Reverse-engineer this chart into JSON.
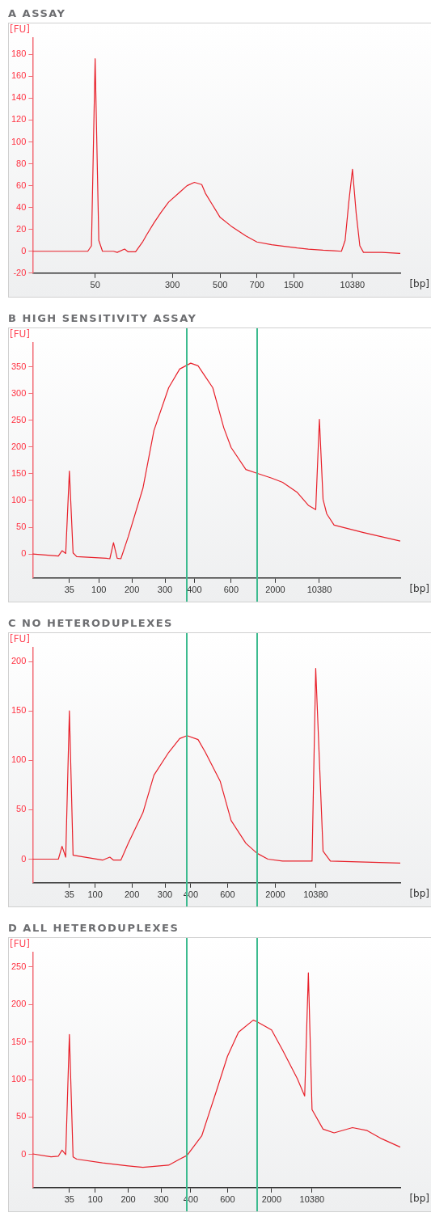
{
  "chart_data": [
    {
      "type": "line",
      "title": "A ASSAY",
      "xlabel": "[bp]",
      "ylabel": "[FU]",
      "ylim": [
        -20,
        195
      ],
      "grid": false,
      "yticks": [
        -20,
        0,
        20,
        40,
        60,
        80,
        100,
        120,
        140,
        160,
        180
      ],
      "categories": [
        null,
        null,
        null,
        null,
        null,
        null,
        null,
        null,
        null,
        null,
        null,
        null,
        null,
        null,
        null,
        null,
        null,
        "50",
        null,
        null,
        null,
        null,
        null,
        null,
        null,
        null,
        null,
        null,
        null,
        null,
        null,
        null,
        null,
        null,
        null,
        null,
        null,
        null,
        "300",
        null,
        null,
        null,
        null,
        null,
        null,
        null,
        null,
        null,
        null,
        null,
        null,
        "500",
        null,
        null,
        null,
        null,
        null,
        null,
        null,
        null,
        null,
        "700",
        null,
        null,
        null,
        null,
        null,
        null,
        null,
        null,
        null,
        "1500",
        null,
        null,
        null,
        null,
        null,
        null,
        null,
        null,
        null,
        null,
        null,
        null,
        null,
        null,
        null,
        "10380",
        null,
        null,
        null,
        null,
        null,
        null,
        null,
        null,
        null,
        null,
        null,
        null,
        null
      ],
      "series": [
        {
          "color": "#e8202a",
          "values": [
            0,
            null,
            null,
            null,
            null,
            null,
            null,
            null,
            null,
            null,
            null,
            null,
            null,
            null,
            null,
            0,
            5,
            176,
            10,
            0,
            null,
            null,
            0,
            -1,
            null,
            2,
            -0.5,
            null,
            -0.5,
            null,
            9,
            15,
            null,
            26,
            null,
            36,
            null,
            45,
            null,
            null,
            54,
            null,
            60,
            null,
            63,
            null,
            61,
            53,
            null,
            42,
            null,
            31,
            null,
            null,
            23,
            null,
            null,
            null,
            14,
            null,
            null,
            8.5,
            null,
            null,
            null,
            6,
            null,
            null,
            4.7,
            null,
            null,
            null,
            3,
            null,
            null,
            2,
            null,
            null,
            null,
            1,
            null,
            null,
            0.5,
            null,
            0,
            10,
            45,
            75,
            35,
            5,
            -1,
            null,
            null,
            null,
            null,
            -1,
            null,
            null,
            null,
            null,
            -2
          ]
        }
      ]
    },
    {
      "type": "line",
      "title": "B HIGH SENSITIVITY ASSAY",
      "xlabel": "[bp]",
      "ylabel": "[FU]",
      "ylim": [
        -45,
        395
      ],
      "grid": false,
      "yticks": [
        0,
        50,
        100,
        150,
        200,
        250,
        300,
        350
      ],
      "categories": [
        null,
        null,
        null,
        null,
        null,
        null,
        null,
        null,
        null,
        null,
        "35",
        null,
        null,
        null,
        null,
        null,
        null,
        null,
        "100",
        null,
        null,
        null,
        null,
        null,
        null,
        null,
        null,
        "200",
        null,
        null,
        null,
        null,
        null,
        null,
        null,
        null,
        "300",
        null,
        null,
        null,
        null,
        null,
        null,
        null,
        "400",
        null,
        null,
        null,
        null,
        null,
        null,
        null,
        null,
        null,
        "600",
        null,
        null,
        null,
        null,
        null,
        null,
        null,
        null,
        null,
        null,
        null,
        "2000",
        null,
        null,
        null,
        null,
        null,
        null,
        null,
        null,
        null,
        null,
        null,
        "10380",
        null,
        null,
        null,
        null,
        null,
        null,
        null,
        null,
        null,
        null,
        null,
        null,
        null,
        null,
        null,
        null,
        null,
        null,
        null,
        null,
        null,
        null
      ],
      "series": [
        {
          "color": "#e8202a",
          "values": [
            0,
            null,
            null,
            null,
            null,
            null,
            null,
            -4,
            6,
            1,
            155,
            2,
            -5,
            null,
            null,
            null,
            null,
            null,
            null,
            null,
            -8,
            -9,
            21,
            -8,
            -9,
            null,
            32,
            null,
            null,
            null,
            123,
            null,
            null,
            231,
            null,
            null,
            null,
            311,
            null,
            null,
            346,
            null,
            null,
            357,
            null,
            352,
            null,
            null,
            null,
            311,
            null,
            null,
            236,
            null,
            199,
            null,
            null,
            null,
            158,
            null,
            null,
            151,
            null,
            null,
            null,
            142,
            null,
            null,
            134,
            null,
            null,
            null,
            115,
            null,
            null,
            91,
            null,
            83,
            252,
            102,
            75,
            null,
            54,
            null,
            null,
            null,
            null,
            null,
            null,
            null,
            40,
            null,
            null,
            null,
            null,
            null,
            null,
            null,
            null,
            null,
            24
          ]
        }
      ]
    },
    {
      "type": "line",
      "title": "C NO HETERODUPLEXES",
      "xlabel": "[bp]",
      "ylabel": "[FU]",
      "ylim": [
        -24,
        214
      ],
      "grid": false,
      "yticks": [
        0,
        50,
        100,
        150,
        200
      ],
      "categories": [
        null,
        null,
        null,
        null,
        null,
        null,
        null,
        null,
        null,
        null,
        "35",
        null,
        null,
        null,
        null,
        null,
        null,
        "100",
        null,
        null,
        null,
        null,
        null,
        null,
        null,
        null,
        null,
        "200",
        null,
        null,
        null,
        null,
        null,
        null,
        null,
        null,
        "300",
        null,
        null,
        null,
        null,
        null,
        null,
        "400",
        null,
        null,
        null,
        null,
        null,
        null,
        null,
        null,
        null,
        "600",
        null,
        null,
        null,
        null,
        null,
        null,
        null,
        null,
        null,
        null,
        null,
        null,
        "2000",
        null,
        null,
        null,
        null,
        null,
        null,
        null,
        null,
        null,
        null,
        "10380",
        null,
        null,
        null,
        null,
        null,
        null,
        null,
        null,
        null,
        null,
        null,
        null,
        null,
        null,
        null,
        null,
        null,
        null,
        null,
        null,
        null,
        null,
        null
      ],
      "series": [
        {
          "color": "#e8202a",
          "values": [
            0,
            null,
            null,
            null,
            null,
            null,
            null,
            0,
            13,
            2,
            150,
            4,
            null,
            null,
            null,
            null,
            null,
            null,
            null,
            -1,
            null,
            2,
            -1,
            null,
            -1,
            null,
            16,
            null,
            null,
            null,
            47,
            null,
            null,
            85,
            null,
            null,
            null,
            108,
            null,
            null,
            122,
            null,
            125,
            null,
            null,
            121,
            null,
            108,
            null,
            null,
            null,
            79,
            null,
            null,
            39,
            null,
            null,
            null,
            16,
            null,
            null,
            6,
            null,
            null,
            0,
            null,
            null,
            null,
            -2,
            null,
            null,
            null,
            null,
            null,
            null,
            null,
            -2,
            193,
            100,
            8,
            null,
            -2,
            null,
            null,
            null,
            null,
            null,
            null,
            null,
            null,
            null,
            null,
            null,
            null,
            null,
            null,
            null,
            null,
            null,
            null,
            -4
          ]
        }
      ]
    },
    {
      "type": "line",
      "title": "D ALL HETERODUPLEXES",
      "xlabel": "[bp]",
      "ylabel": "[FU]",
      "ylim": [
        -44,
        269
      ],
      "grid": false,
      "yticks": [
        0,
        50,
        100,
        150,
        200,
        250
      ],
      "categories": [
        null,
        null,
        null,
        null,
        null,
        null,
        null,
        null,
        null,
        null,
        "35",
        null,
        null,
        null,
        null,
        null,
        null,
        "100",
        null,
        null,
        null,
        null,
        null,
        null,
        null,
        null,
        "200",
        null,
        null,
        null,
        null,
        null,
        null,
        null,
        null,
        "300",
        null,
        null,
        null,
        null,
        null,
        null,
        null,
        "400",
        null,
        null,
        null,
        null,
        null,
        null,
        null,
        null,
        null,
        "600",
        null,
        null,
        null,
        null,
        null,
        null,
        null,
        null,
        null,
        null,
        null,
        "2000",
        null,
        null,
        null,
        null,
        null,
        null,
        null,
        null,
        null,
        null,
        "10380",
        null,
        null,
        null,
        null,
        null,
        null,
        null,
        null,
        null,
        null,
        null,
        null,
        null,
        null,
        null,
        null,
        null,
        null,
        null,
        null,
        null,
        null,
        null,
        null
      ],
      "series": [
        {
          "color": "#e8202a",
          "values": [
            1,
            null,
            null,
            null,
            null,
            -3,
            null,
            -2,
            6,
            0,
            160,
            -3,
            -6,
            null,
            null,
            null,
            null,
            null,
            null,
            -11,
            null,
            null,
            null,
            null,
            null,
            null,
            -15,
            null,
            null,
            null,
            -17,
            null,
            null,
            null,
            null,
            null,
            null,
            -14,
            null,
            null,
            -6,
            null,
            -1,
            null,
            null,
            null,
            25,
            null,
            null,
            null,
            85,
            null,
            null,
            131,
            null,
            null,
            163,
            null,
            null,
            null,
            179,
            177,
            null,
            null,
            null,
            166,
            null,
            null,
            139,
            null,
            null,
            null,
            101,
            null,
            78,
            242,
            60,
            null,
            null,
            34,
            null,
            null,
            29,
            null,
            null,
            null,
            null,
            36,
            null,
            null,
            null,
            32,
            null,
            null,
            null,
            21,
            null,
            null,
            null,
            null,
            10
          ]
        }
      ]
    }
  ]
}
